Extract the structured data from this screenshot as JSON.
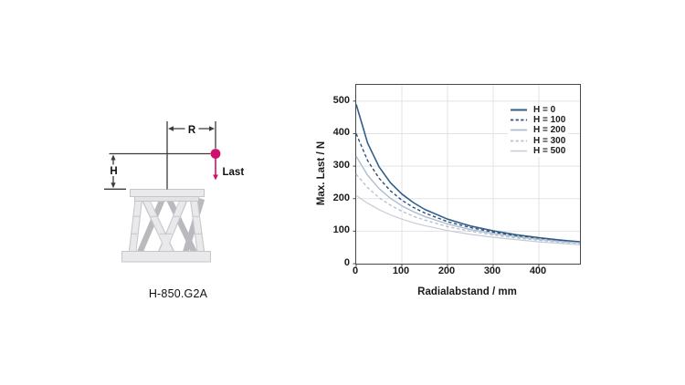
{
  "diagram": {
    "caption": "H-850.G2A",
    "radius_label": "R",
    "height_label": "H",
    "load_label": "Last",
    "colors": {
      "load_accent": "#d00e6d",
      "dimension_line": "#3c3c3c"
    }
  },
  "chart_data": {
    "type": "line",
    "title": "",
    "xlabel": "Radialabstand / mm",
    "ylabel": "Max. Last / N",
    "xlim": [
      0,
      490
    ],
    "ylim": [
      0,
      550
    ],
    "x_ticks": [
      0,
      100,
      200,
      300,
      400
    ],
    "y_ticks": [
      0,
      100,
      200,
      300,
      400,
      500
    ],
    "grid": true,
    "grid_color": "#e3e3e5",
    "axis_color": "#474747",
    "legend_position": "top-right",
    "x": [
      0,
      25,
      50,
      75,
      100,
      125,
      150,
      200,
      250,
      300,
      350,
      400,
      450,
      490
    ],
    "series": [
      {
        "key": "h0",
        "name": "H = 0",
        "color": "#2f5e88",
        "dash": "solid",
        "width": 1.6,
        "values": [
          490,
          371,
          298,
          249,
          214,
          188,
          167,
          137,
          116,
          101,
          89,
          80,
          72,
          67
        ]
      },
      {
        "key": "h100",
        "name": "H = 100",
        "color": "#2b4d7a",
        "dash": "dashed",
        "width": 1.4,
        "values": [
          400,
          317,
          263,
          224,
          195,
          173,
          156,
          129,
          111,
          97,
          86,
          77,
          70,
          65
        ]
      },
      {
        "key": "h200",
        "name": "H = 200",
        "color": "#aebcce",
        "dash": "solid",
        "width": 1.4,
        "values": [
          330,
          272,
          231,
          201,
          178,
          160,
          145,
          122,
          105,
          93,
          83,
          75,
          68,
          64
        ]
      },
      {
        "key": "h300",
        "name": "H = 300",
        "color": "#b6c3d3",
        "dash": "dashed",
        "width": 1.4,
        "values": [
          275,
          234,
          203,
          180,
          161,
          146,
          134,
          114,
          100,
          88,
          79,
          72,
          66,
          62
        ]
      },
      {
        "key": "h500",
        "name": "H = 500",
        "color": "#c5ccd6",
        "dash": "solid",
        "width": 1.2,
        "values": [
          210,
          186,
          166,
          150,
          137,
          126,
          117,
          102,
          90,
          81,
          74,
          67,
          62,
          58
        ]
      }
    ]
  }
}
